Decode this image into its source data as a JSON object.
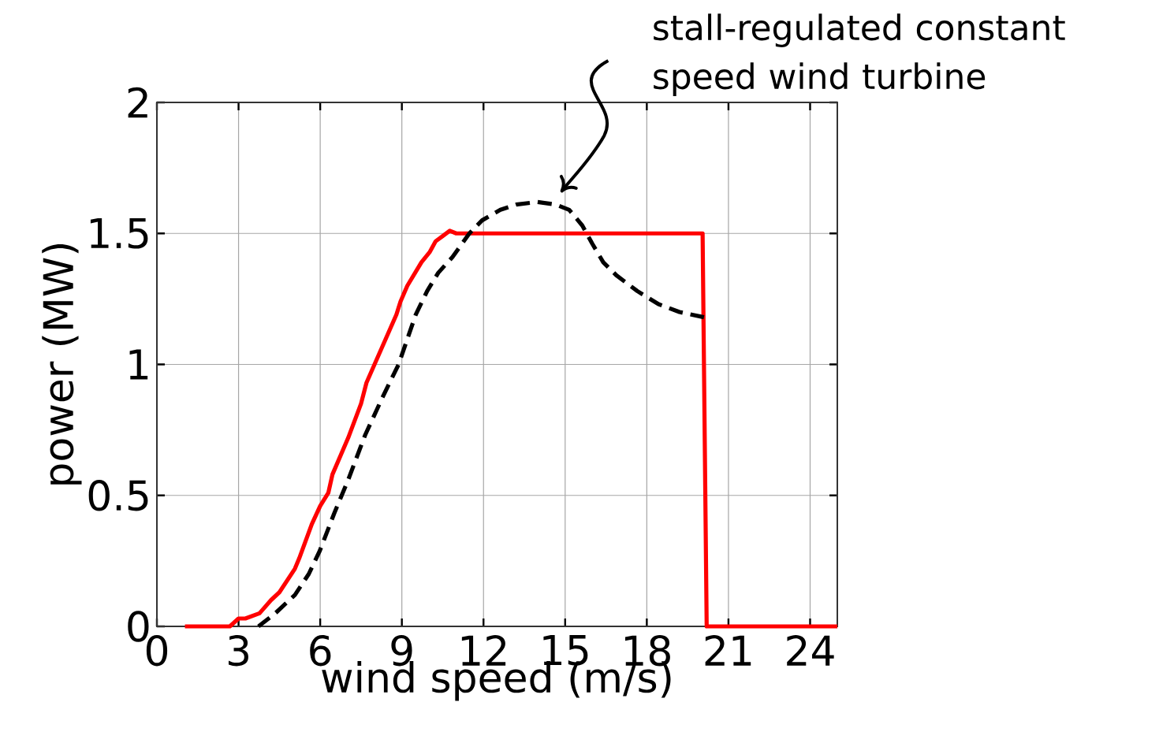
{
  "chart_data": {
    "type": "line",
    "xlabel": "wind speed (m/s)",
    "ylabel": "power (MW)",
    "xlim": [
      0,
      25
    ],
    "ylim": [
      0,
      2
    ],
    "xticks": [
      0,
      3,
      6,
      9,
      12,
      15,
      18,
      21,
      24
    ],
    "yticks": [
      0,
      0.5,
      1,
      1.5,
      2
    ],
    "grid": true,
    "marker": "none",
    "annotations": [
      "stall-regulated constant speed wind turbine"
    ],
    "series": [
      {
        "color": "#ff0000",
        "line_style": "solid",
        "x": [
          1.03,
          2.68,
          3.0,
          3.25,
          3.77,
          4.19,
          4.5,
          5.07,
          5.23,
          5.69,
          6.0,
          6.3,
          6.45,
          7.03,
          7.5,
          7.7,
          8.8,
          8.95,
          9.2,
          9.72,
          10.03,
          10.24,
          10.5,
          10.76,
          11.0,
          20.05,
          20.2,
          25
        ],
        "values": [
          0,
          0,
          0.03,
          0.03,
          0.05,
          0.1,
          0.13,
          0.22,
          0.26,
          0.39,
          0.46,
          0.51,
          0.58,
          0.72,
          0.85,
          0.93,
          1.19,
          1.24,
          1.3,
          1.39,
          1.43,
          1.47,
          1.49,
          1.51,
          1.5,
          1.5,
          0,
          0
        ]
      },
      {
        "color": "#000000",
        "line_style": "dashed",
        "x": [
          3.73,
          4.35,
          5.07,
          5.58,
          5.99,
          6.51,
          7.03,
          7.65,
          8.27,
          8.88,
          9.51,
          9.93,
          10.34,
          10.86,
          11.48,
          11.95,
          12.62,
          13.2,
          13.98,
          14.66,
          15.15,
          15.63,
          16.0,
          16.4,
          16.88,
          17.65,
          18.43,
          19.2,
          20.1
        ],
        "values": [
          0,
          0.05,
          0.12,
          0.2,
          0.29,
          0.43,
          0.56,
          0.73,
          0.87,
          1.0,
          1.19,
          1.28,
          1.35,
          1.41,
          1.5,
          1.55,
          1.59,
          1.61,
          1.62,
          1.61,
          1.59,
          1.53,
          1.46,
          1.39,
          1.34,
          1.28,
          1.23,
          1.2,
          1.18
        ]
      }
    ]
  }
}
